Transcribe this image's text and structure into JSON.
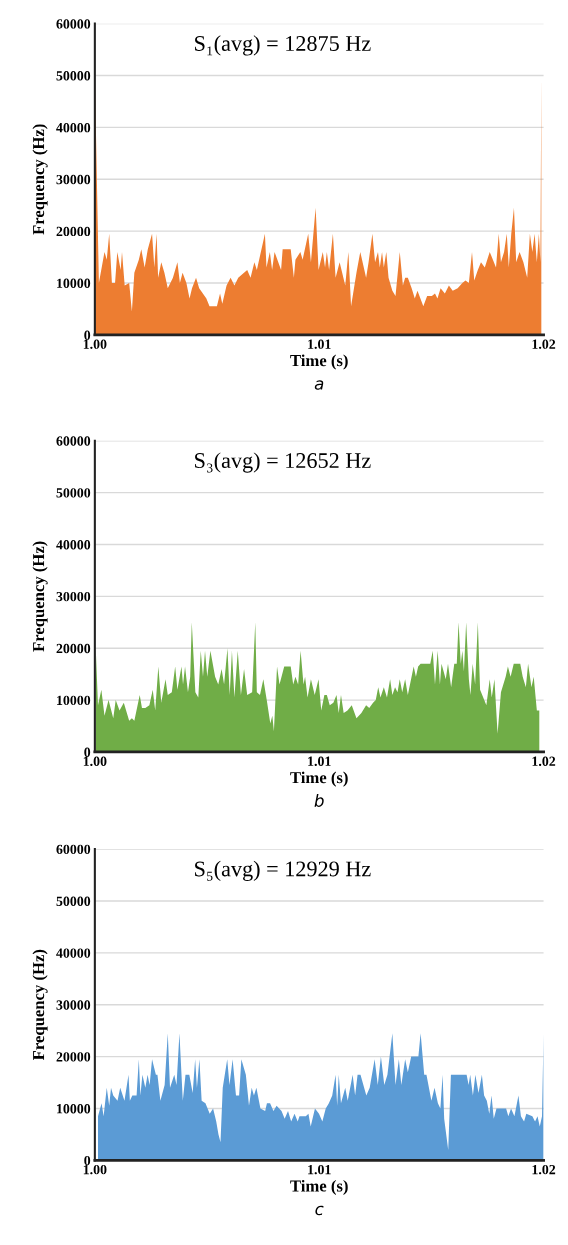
{
  "chart_data": [
    {
      "type": "area",
      "xlabel": "Time (s)",
      "ylabel": "Frequency (Hz)",
      "annotations": [
        "S₁(avg) = 12875 Hz",
        "a"
      ],
      "xlim": [
        1.0,
        1.02
      ],
      "xticks": [
        {
          "value": 1.0,
          "label": "1.00"
        },
        {
          "value": 1.01,
          "label": "1.01"
        },
        {
          "value": 1.02,
          "label": "1.02"
        }
      ],
      "ylim": [
        0,
        60000
      ],
      "yticks": [
        0,
        10000,
        20000,
        30000,
        40000,
        50000,
        60000
      ],
      "grid": "y",
      "series": [
        {
          "color": "#ed7d31",
          "x": [
            1.0,
            1.00018,
            1.00043,
            1.00053,
            1.00064,
            1.00076,
            1.0009,
            1.001,
            1.00115,
            1.00121,
            1.00133,
            1.00153,
            1.00165,
            1.00176,
            1.00196,
            1.00207,
            1.00222,
            1.00236,
            1.00255,
            1.00265,
            1.00275,
            1.00282,
            1.00296,
            1.0031,
            1.00325,
            1.00348,
            1.00368,
            1.00379,
            1.00391,
            1.00408,
            1.00422,
            1.00433,
            1.00451,
            1.00465,
            1.00497,
            1.00511,
            1.00529,
            1.00544,
            1.00558,
            1.00568,
            1.00587,
            1.00605,
            1.00622,
            1.00639,
            1.00679,
            1.00694,
            1.00711,
            1.00722,
            1.00758,
            1.00765,
            1.0078,
            1.0079,
            1.00801,
            1.0083,
            1.00837,
            1.00873,
            1.00887,
            1.00894,
            1.00916,
            1.00926,
            1.00951,
            1.00963,
            1.00984,
            1.00997,
            1.01016,
            1.01026,
            1.01034,
            1.01044,
            1.01061,
            1.01073,
            1.01091,
            1.01116,
            1.0113,
            1.01142,
            1.01166,
            1.01183,
            1.01209,
            1.0122,
            1.01237,
            1.01249,
            1.01262,
            1.0127,
            1.0128,
            1.01288,
            1.01299,
            1.01309,
            1.01326,
            1.0134,
            1.01359,
            1.01373,
            1.01383,
            1.01395,
            1.01412,
            1.01426,
            1.01438,
            1.01464,
            1.01481,
            1.01502,
            1.01516,
            1.01527,
            1.01541,
            1.0156,
            1.01578,
            1.01595,
            1.01617,
            1.01638,
            1.01652,
            1.01667,
            1.01681,
            1.01691,
            1.01707,
            1.01721,
            1.01738,
            1.0176,
            1.01788,
            1.018,
            1.0181,
            1.01824,
            1.01836,
            1.01845,
            1.01856,
            1.01868,
            1.01878,
            1.01893,
            1.0191,
            1.01927,
            1.01939,
            1.0195,
            1.0196,
            1.0197,
            1.01979,
            1.01986,
            1.0199
          ],
          "values": [
            50000,
            10000,
            16000,
            14500,
            19500,
            10000,
            10000,
            16000,
            12500,
            16000,
            9500,
            10000,
            4500,
            12000,
            14500,
            16500,
            13000,
            16500,
            19500,
            13000,
            19500,
            11000,
            14000,
            12000,
            9000,
            11000,
            14000,
            10000,
            12000,
            10000,
            7000,
            9000,
            11000,
            9000,
            7000,
            5500,
            5500,
            5500,
            8000,
            6000,
            9500,
            11000,
            9500,
            11000,
            12500,
            11000,
            14000,
            12500,
            19500,
            13000,
            16000,
            12500,
            16000,
            12500,
            16500,
            16500,
            11000,
            14500,
            16000,
            14500,
            19500,
            14000,
            24500,
            12500,
            16000,
            13000,
            16000,
            12500,
            19500,
            11000,
            14000,
            9500,
            16000,
            5500,
            12000,
            16000,
            11000,
            14000,
            19500,
            14000,
            16000,
            13000,
            16000,
            13000,
            16000,
            11000,
            8500,
            7500,
            16000,
            9500,
            11000,
            11000,
            9000,
            7000,
            8500,
            5500,
            7500,
            7500,
            8000,
            7000,
            9000,
            8000,
            9500,
            8500,
            9000,
            10000,
            10500,
            10000,
            16000,
            10500,
            12500,
            14000,
            13000,
            16000,
            13000,
            19500,
            14000,
            16000,
            19500,
            13000,
            19500,
            24500,
            14000,
            16000,
            14000,
            11000,
            19500,
            16000,
            19500,
            14000,
            19500,
            14000,
            50000
          ]
        }
      ]
    },
    {
      "type": "area",
      "xlabel": "Time (s)",
      "ylabel": "Frequency (Hz)",
      "annotations": [
        "S₃(avg) = 12652 Hz",
        "b"
      ],
      "xlim": [
        1.0,
        1.02
      ],
      "xticks": [
        {
          "value": 1.0,
          "label": "1.00"
        },
        {
          "value": 1.01,
          "label": "1.01"
        },
        {
          "value": 1.02,
          "label": "1.02"
        }
      ],
      "ylim": [
        0,
        60000
      ],
      "yticks": [
        0,
        10000,
        20000,
        30000,
        40000,
        50000,
        60000
      ],
      "grid": "y",
      "series": [
        {
          "color": "#70ad47",
          "x": [
            1.00004,
            1.00014,
            1.00029,
            1.00043,
            1.00061,
            1.00082,
            1.00093,
            1.0011,
            1.00129,
            1.00153,
            1.00165,
            1.00176,
            1.002,
            1.0021,
            1.00225,
            1.00243,
            1.00258,
            1.00269,
            1.00283,
            1.00296,
            1.00315,
            1.00325,
            1.00343,
            1.00358,
            1.00368,
            1.00386,
            1.00393,
            1.00402,
            1.00415,
            1.00425,
            1.00432,
            1.00448,
            1.00461,
            1.00472,
            1.00482,
            1.00491,
            1.00501,
            1.00515,
            1.00536,
            1.0055,
            1.00565,
            1.00576,
            1.00591,
            1.00601,
            1.00611,
            1.00622,
            1.00637,
            1.00651,
            1.00665,
            1.00679,
            1.00701,
            1.00715,
            1.00722,
            1.00736,
            1.00751,
            1.00768,
            1.00782,
            1.00791,
            1.00798,
            1.00812,
            1.00823,
            1.00844,
            1.00873,
            1.00884,
            1.00894,
            1.00906,
            1.00917,
            1.0093,
            1.00937,
            1.00948,
            1.00963,
            1.0098,
            1.00997,
            1.01009,
            1.01023,
            1.01034,
            1.01047,
            1.01063,
            1.01077,
            1.01087,
            1.01097,
            1.01109,
            1.01126,
            1.01145,
            1.01166,
            1.01188,
            1.01209,
            1.01223,
            1.0124,
            1.01252,
            1.01263,
            1.01273,
            1.01288,
            1.01302,
            1.01316,
            1.01326,
            1.01338,
            1.01349,
            1.01359,
            1.0137,
            1.01383,
            1.01395,
            1.01421,
            1.01431,
            1.01441,
            1.01452,
            1.01495,
            1.01506,
            1.01516,
            1.01528,
            1.01538,
            1.01545,
            1.01564,
            1.01574,
            1.01588,
            1.01602,
            1.01613,
            1.01621,
            1.01631,
            1.01638,
            1.01645,
            1.01655,
            1.01667,
            1.01674,
            1.01684,
            1.01695,
            1.01707,
            1.01717,
            1.01745,
            1.0176,
            1.01769,
            1.01781,
            1.01795,
            1.0181,
            1.01831,
            1.01841,
            1.01853,
            1.01867,
            1.01896,
            1.01907,
            1.01921,
            1.01931,
            1.01946,
            1.01956,
            1.0197,
            1.01981
          ],
          "values": [
            20000,
            9000,
            12000,
            7000,
            10000,
            6500,
            10000,
            8000,
            9500,
            6000,
            6500,
            6000,
            11000,
            8500,
            8500,
            9000,
            12000,
            8000,
            16500,
            9500,
            14000,
            11000,
            11500,
            16500,
            12000,
            16500,
            13000,
            16500,
            11500,
            14500,
            25000,
            11500,
            10500,
            19500,
            14500,
            19500,
            14500,
            19500,
            14500,
            13000,
            16000,
            13000,
            20000,
            11000,
            19500,
            10500,
            19500,
            11000,
            16000,
            11000,
            11500,
            25000,
            11500,
            11000,
            14000,
            9500,
            5500,
            7000,
            4000,
            16500,
            13000,
            16500,
            16500,
            13000,
            14500,
            13000,
            19500,
            13000,
            14500,
            10500,
            14000,
            11000,
            14000,
            8000,
            11000,
            11000,
            9000,
            9500,
            11000,
            7500,
            11000,
            7500,
            8000,
            9000,
            6500,
            7500,
            9000,
            8500,
            9500,
            10000,
            12500,
            10500,
            12500,
            10500,
            14000,
            11000,
            12500,
            11500,
            14000,
            11500,
            14000,
            11000,
            16500,
            14500,
            16500,
            17000,
            17000,
            19500,
            13000,
            19500,
            13000,
            17000,
            14000,
            17000,
            12500,
            17000,
            17000,
            25000,
            17000,
            19500,
            15500,
            25000,
            14000,
            11000,
            17000,
            13000,
            25000,
            12000,
            9000,
            14000,
            10500,
            14000,
            3500,
            11500,
            14500,
            16500,
            14500,
            17000,
            17000,
            14500,
            12500,
            17000,
            12500,
            14500,
            8000,
            8000
          ]
        }
      ]
    },
    {
      "type": "area",
      "xlabel": "Time (s)",
      "ylabel": "Frequency (Hz)",
      "annotations": [
        "S₅(avg) = 12929 Hz",
        "c"
      ],
      "xlim": [
        1.0,
        1.02
      ],
      "xticks": [
        {
          "value": 1.0,
          "label": "1.00"
        },
        {
          "value": 1.01,
          "label": "1.01"
        },
        {
          "value": 1.02,
          "label": "1.02"
        }
      ],
      "ylim": [
        0,
        60000
      ],
      "yticks": [
        0,
        10000,
        20000,
        30000,
        40000,
        50000,
        60000
      ],
      "grid": "y",
      "series": [
        {
          "color": "#5b9bd5",
          "x": [
            1.00014,
            1.0003,
            1.00039,
            1.00053,
            1.00064,
            1.00072,
            1.00082,
            1.00101,
            1.00113,
            1.00132,
            1.0015,
            1.00156,
            1.00167,
            1.00186,
            1.00196,
            1.00203,
            1.00212,
            1.00225,
            1.00235,
            1.00244,
            1.00255,
            1.00272,
            1.00279,
            1.00292,
            1.00311,
            1.00325,
            1.00335,
            1.00354,
            1.00364,
            1.00377,
            1.00392,
            1.00404,
            1.00421,
            1.00436,
            1.00447,
            1.00455,
            1.00466,
            1.00476,
            1.00493,
            1.00512,
            1.00527,
            1.00541,
            1.00551,
            1.0056,
            1.0057,
            1.0059,
            1.006,
            1.00614,
            1.00629,
            1.00643,
            1.00653,
            1.00673,
            1.00687,
            1.00699,
            1.00709,
            1.0072,
            1.00738,
            1.00759,
            1.00767,
            1.00781,
            1.00796,
            1.0081,
            1.00832,
            1.00846,
            1.00861,
            1.00875,
            1.0089,
            1.00904,
            1.00912,
            1.0094,
            1.00952,
            1.00962,
            1.00981,
            1.00999,
            1.01014,
            1.01029,
            1.01043,
            1.01058,
            1.01073,
            1.0108,
            1.01087,
            1.01097,
            1.01116,
            1.01127,
            1.01149,
            1.0116,
            1.01171,
            1.01184,
            1.0121,
            1.01225,
            1.01247,
            1.01261,
            1.01275,
            1.0129,
            1.01304,
            1.01326,
            1.0134,
            1.01355,
            1.01366,
            1.01383,
            1.01395,
            1.0141,
            1.0142,
            1.01442,
            1.01452,
            1.01468,
            1.01478,
            1.015,
            1.01514,
            1.01529,
            1.0154,
            1.0155,
            1.01557,
            1.01575,
            1.01587,
            1.01657,
            1.01666,
            1.01673,
            1.01685,
            1.01696,
            1.0171,
            1.01725,
            1.01735,
            1.01747,
            1.01758,
            1.01768,
            1.01778,
            1.0179,
            1.01833,
            1.01843,
            1.01855,
            1.0187,
            1.01888,
            1.01899,
            1.01913,
            1.01923,
            1.0195,
            1.01962,
            1.01973,
            1.01983,
            1.01993,
            1.02
          ],
          "values": [
            8500,
            11000,
            8500,
            14000,
            10500,
            14000,
            12500,
            11500,
            14000,
            11500,
            16500,
            11500,
            12500,
            12500,
            19500,
            12500,
            16500,
            14000,
            16500,
            14500,
            19500,
            16500,
            16500,
            11500,
            14500,
            24500,
            14000,
            16500,
            14500,
            24500,
            11500,
            16500,
            16500,
            13000,
            19500,
            14000,
            19500,
            11500,
            11000,
            9000,
            10000,
            7500,
            5000,
            3500,
            14000,
            19500,
            14500,
            19500,
            12500,
            12500,
            19500,
            16500,
            10500,
            14000,
            12500,
            14000,
            10000,
            9500,
            11000,
            11000,
            9500,
            10500,
            9500,
            8000,
            9500,
            7500,
            9000,
            7500,
            8500,
            8500,
            9000,
            6500,
            10000,
            9000,
            7500,
            10000,
            11000,
            12500,
            16500,
            10500,
            16500,
            11000,
            14000,
            11500,
            16500,
            12500,
            16500,
            16500,
            12500,
            14000,
            19500,
            14500,
            20000,
            14500,
            16500,
            24500,
            14500,
            19500,
            14500,
            19500,
            17000,
            20000,
            20000,
            20000,
            24500,
            16500,
            16500,
            11500,
            14000,
            11000,
            10000,
            16500,
            8000,
            2000,
            16500,
            16500,
            14500,
            16500,
            12500,
            16500,
            13000,
            16500,
            12500,
            11500,
            9000,
            12500,
            8000,
            10000,
            10000,
            8500,
            10000,
            8500,
            12500,
            8500,
            7500,
            9000,
            8500,
            7500,
            8500,
            6500,
            8500,
            24500
          ]
        }
      ]
    }
  ]
}
